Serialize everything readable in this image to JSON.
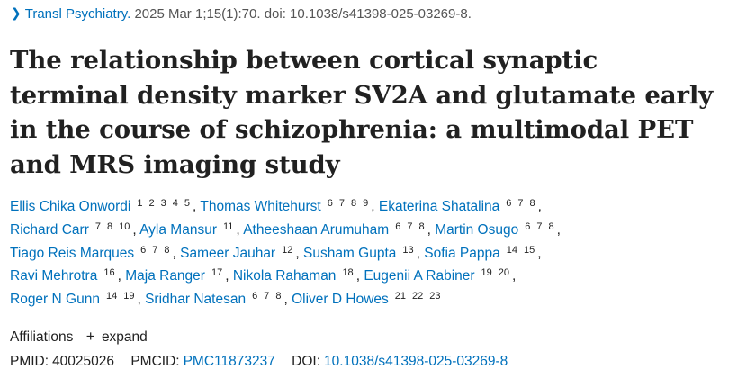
{
  "citation": {
    "journal": "Transl Psychiatry.",
    "details": "2025 Mar 1;15(1):70. doi: 10.1038/s41398-025-03269-8."
  },
  "title": "The relationship between cortical synaptic terminal density marker SV2A and glutamate early in the course of schizophrenia: a multimodal PET and MRS imaging study",
  "authors": [
    {
      "name": "Ellis Chika Onwordi",
      "refs": [
        "1",
        "2",
        "3",
        "4",
        "5"
      ]
    },
    {
      "name": "Thomas Whitehurst",
      "refs": [
        "6",
        "7",
        "8",
        "9"
      ]
    },
    {
      "name": "Ekaterina Shatalina",
      "refs": [
        "6",
        "7",
        "8"
      ]
    },
    {
      "name": "Richard Carr",
      "refs": [
        "7",
        "8",
        "10"
      ]
    },
    {
      "name": "Ayla Mansur",
      "refs": [
        "11"
      ]
    },
    {
      "name": "Atheeshaan Arumuham",
      "refs": [
        "6",
        "7",
        "8"
      ]
    },
    {
      "name": "Martin Osugo",
      "refs": [
        "6",
        "7",
        "8"
      ]
    },
    {
      "name": "Tiago Reis Marques",
      "refs": [
        "6",
        "7",
        "8"
      ]
    },
    {
      "name": "Sameer Jauhar",
      "refs": [
        "12"
      ]
    },
    {
      "name": "Susham Gupta",
      "refs": [
        "13"
      ]
    },
    {
      "name": "Sofia Pappa",
      "refs": [
        "14",
        "15"
      ]
    },
    {
      "name": "Ravi Mehrotra",
      "refs": [
        "16"
      ]
    },
    {
      "name": "Maja Ranger",
      "refs": [
        "17"
      ]
    },
    {
      "name": "Nikola Rahaman",
      "refs": [
        "18"
      ]
    },
    {
      "name": "Eugenii A Rabiner",
      "refs": [
        "19",
        "20"
      ]
    },
    {
      "name": "Roger N Gunn",
      "refs": [
        "14",
        "19"
      ]
    },
    {
      "name": "Sridhar Natesan",
      "refs": [
        "6",
        "7",
        "8"
      ]
    },
    {
      "name": "Oliver D Howes",
      "refs": [
        "21",
        "22",
        "23"
      ]
    }
  ],
  "author_lines": [
    [
      0,
      1,
      2
    ],
    [
      3,
      4,
      5,
      6
    ],
    [
      7,
      8,
      9,
      10
    ],
    [
      11,
      12,
      13,
      14
    ],
    [
      15,
      16,
      17
    ]
  ],
  "affiliations": {
    "label": "Affiliations",
    "expand_symbol": "+",
    "expand_label": "expand"
  },
  "ids": {
    "pmid_label": "PMID:",
    "pmid": "40025026",
    "pmcid_label": "PMCID:",
    "pmcid": "PMC11873237",
    "doi_label": "DOI:",
    "doi": "10.1038/s41398-025-03269-8"
  },
  "icons": {
    "citation_toggle": "chevron-right-icon",
    "expand": "plus-icon"
  },
  "colors": {
    "link": "#0071bc",
    "text": "#212121"
  }
}
